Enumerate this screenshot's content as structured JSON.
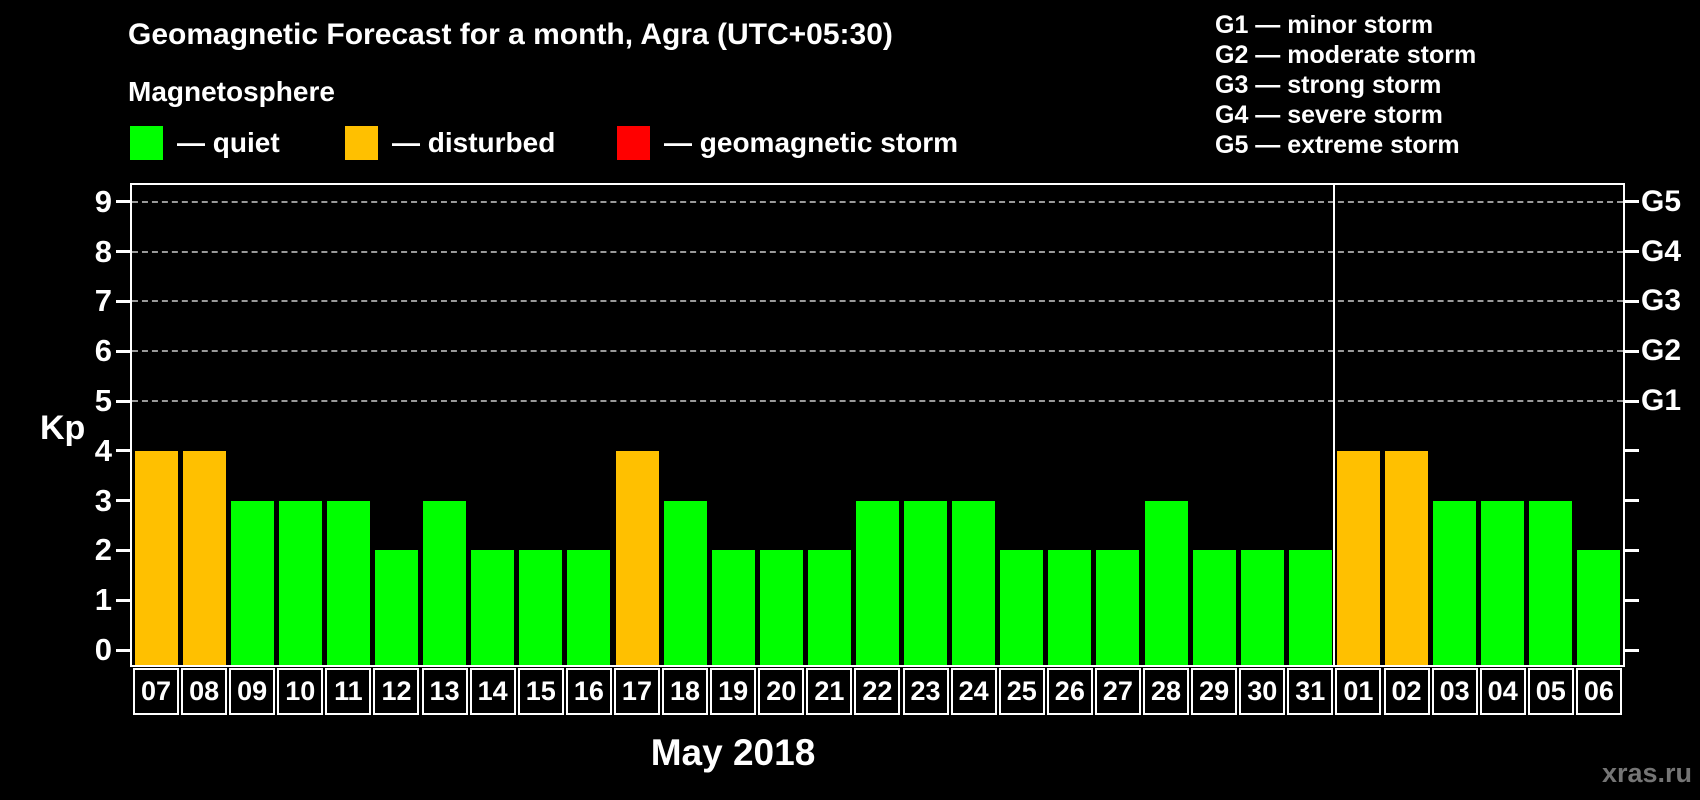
{
  "title": "Geomagnetic Forecast for a month, Agra (UTC+05:30)",
  "legend": {
    "heading": "Magnetosphere",
    "items": [
      {
        "name": "quiet",
        "label": "— quiet",
        "color": "#00ff00",
        "x": 130
      },
      {
        "name": "disturbed",
        "label": "— disturbed",
        "color": "#ffc000",
        "x": 345
      },
      {
        "name": "storm",
        "label": "— geomagnetic storm",
        "color": "#ff0000",
        "x": 617
      }
    ]
  },
  "g_scale_legend": [
    "G1 — minor storm",
    "G2 — moderate storm",
    "G3 — strong storm",
    "G4 — severe storm",
    "G5 — extreme storm"
  ],
  "chart_data": {
    "type": "bar",
    "title": "Geomagnetic Forecast for a month, Agra (UTC+05:30)",
    "ylabel": "Kp",
    "xlabel": "May 2018",
    "ylim": [
      0,
      9
    ],
    "yticks": [
      0,
      1,
      2,
      3,
      4,
      5,
      6,
      7,
      8,
      9
    ],
    "gridlines_at": [
      5,
      6,
      7,
      8,
      9
    ],
    "grid": true,
    "legend_position": "top",
    "right_axis": [
      {
        "kp": 5,
        "label": "G1"
      },
      {
        "kp": 6,
        "label": "G2"
      },
      {
        "kp": 7,
        "label": "G3"
      },
      {
        "kp": 8,
        "label": "G4"
      },
      {
        "kp": 9,
        "label": "G5"
      }
    ],
    "categories": [
      "07",
      "08",
      "09",
      "10",
      "11",
      "12",
      "13",
      "14",
      "15",
      "16",
      "17",
      "18",
      "19",
      "20",
      "21",
      "22",
      "23",
      "24",
      "25",
      "26",
      "27",
      "28",
      "29",
      "30",
      "31",
      "01",
      "02",
      "03",
      "04",
      "05",
      "06"
    ],
    "values": [
      4,
      4,
      3,
      3,
      3,
      2,
      3,
      2,
      2,
      2,
      4,
      3,
      2,
      2,
      2,
      3,
      3,
      3,
      2,
      2,
      2,
      3,
      2,
      2,
      2,
      4,
      4,
      3,
      3,
      3,
      2
    ],
    "statuses": [
      "disturbed",
      "disturbed",
      "quiet",
      "quiet",
      "quiet",
      "quiet",
      "quiet",
      "quiet",
      "quiet",
      "quiet",
      "disturbed",
      "quiet",
      "quiet",
      "quiet",
      "quiet",
      "quiet",
      "quiet",
      "quiet",
      "quiet",
      "quiet",
      "quiet",
      "quiet",
      "quiet",
      "quiet",
      "quiet",
      "disturbed",
      "disturbed",
      "quiet",
      "quiet",
      "quiet",
      "quiet"
    ],
    "bar_colors": {
      "quiet": "#00ff00",
      "disturbed": "#ffc000",
      "storm": "#ff0000"
    },
    "month_separator_after_index": 24
  },
  "footer": {
    "xaxis_title": "May 2018",
    "watermark": "xras.ru"
  }
}
